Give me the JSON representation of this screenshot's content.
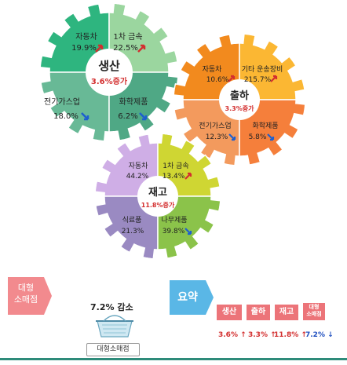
{
  "gears": {
    "production": {
      "title": "생산",
      "total": "3.6%증가",
      "q1_name": "자동차",
      "q1_val": "19.9%",
      "q2_name": "1차 금속",
      "q2_val": "22.5%",
      "q3_name": "전기가스업",
      "q3_val": "18.0%",
      "q4_name": "화학제품",
      "q4_val": "6.2%"
    },
    "shipment": {
      "title": "출하",
      "total": "3.3%증가",
      "q1_name": "자동차",
      "q1_val": "10.6%",
      "q2_name": "기타 운송장비",
      "q2_val": "215.7%",
      "q3_name": "전기가스업",
      "q3_val": "12.3%",
      "q4_name": "화학제품",
      "q4_val": "5.8%"
    },
    "inventory": {
      "title": "재고",
      "total": "11.8%증가",
      "q1_name": "자동차",
      "q1_val": "44.2%",
      "q2_name": "1차 금속",
      "q2_val": "13.4%",
      "q3_name": "식료품",
      "q3_val": "21.3%",
      "q4_name": "나무제품",
      "q4_val": "39.8%"
    }
  },
  "retail": {
    "tag_line1": "대형",
    "tag_line2": "소매점",
    "change": "7.2% 감소",
    "label": "대형소매점"
  },
  "summary": {
    "tag": "요약",
    "items": [
      {
        "label": "생산",
        "value": "3.6% ↑"
      },
      {
        "label": "출하",
        "value": "3.3% ↑"
      },
      {
        "label": "재고",
        "value": "11.8% ↑"
      },
      {
        "label_line1": "대형",
        "label_line2": "소매점",
        "value": "7.2% ↓"
      }
    ]
  },
  "colors": {
    "prod_q1": "#2eb57f",
    "prod_q2": "#9bd69f",
    "prod_q3": "#68b996",
    "prod_q4": "#4fa885",
    "ship_q1": "#f28a1e",
    "ship_q2": "#fbb733",
    "ship_q3": "#f39a5d",
    "ship_q4": "#f57f3b",
    "inv_q1": "#cfaee6",
    "inv_q2": "#cfd633",
    "inv_q3": "#9a8ac2",
    "inv_q4": "#8bc34a",
    "up_arrow": "#d32f2f",
    "down_arrow": "#1e5fcf"
  }
}
